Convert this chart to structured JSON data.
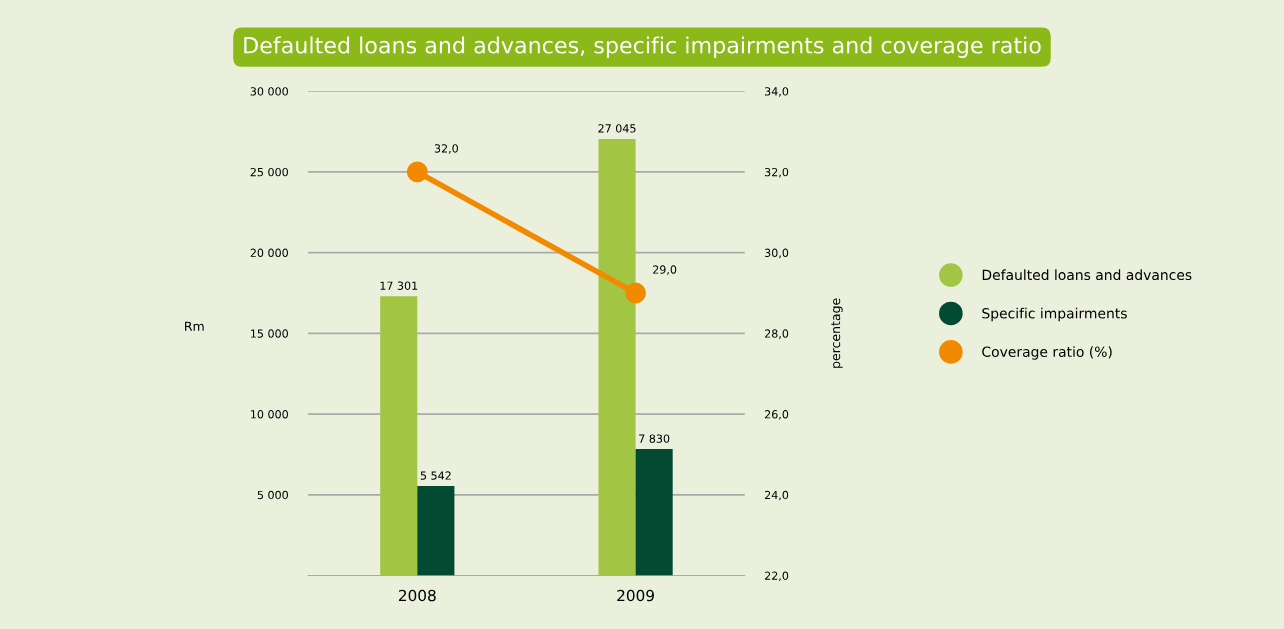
{
  "chart_data": {
    "type": "bar",
    "title": "Defaulted loans and advances, specific impairments and coverage ratio",
    "categories": [
      "2008",
      "2009"
    ],
    "ylabel": "Rm",
    "y2label": "percentage",
    "series": [
      {
        "name": "Defaulted loans and advances",
        "color": "#a2c644",
        "values": [
          17301,
          27045
        ],
        "value_labels": [
          "17 301",
          "27 045"
        ]
      },
      {
        "name": "Specific impairments",
        "color": "#034a33",
        "values": [
          5542,
          7830
        ],
        "value_labels": [
          "5 542",
          "7 830"
        ]
      },
      {
        "name": "Coverage ratio (%)",
        "type": "line",
        "axis": "y2",
        "color": "#f18a00",
        "marker": "circle",
        "values": [
          32.0,
          29.0
        ],
        "value_labels": [
          "32,0",
          "29,0"
        ]
      }
    ],
    "ylim": [
      0,
      30000
    ],
    "yticks": [
      {
        "value": 5000,
        "label": "5 000"
      },
      {
        "value": 10000,
        "label": "10 000"
      },
      {
        "value": 15000,
        "label": "15 000"
      },
      {
        "value": 20000,
        "label": "20 000"
      },
      {
        "value": 25000,
        "label": "25 000"
      },
      {
        "value": 30000,
        "label": "30 000"
      }
    ],
    "y2lim": [
      22,
      34
    ],
    "y2ticks": [
      {
        "value": 22,
        "label": "22,0"
      },
      {
        "value": 24,
        "label": "24,0"
      },
      {
        "value": 26,
        "label": "26,0"
      },
      {
        "value": 28,
        "label": "28,0"
      },
      {
        "value": 30,
        "label": "30,0"
      },
      {
        "value": 32,
        "label": "32,0"
      },
      {
        "value": 34,
        "label": "34,0"
      }
    ],
    "grid": "y",
    "legend": "right"
  }
}
